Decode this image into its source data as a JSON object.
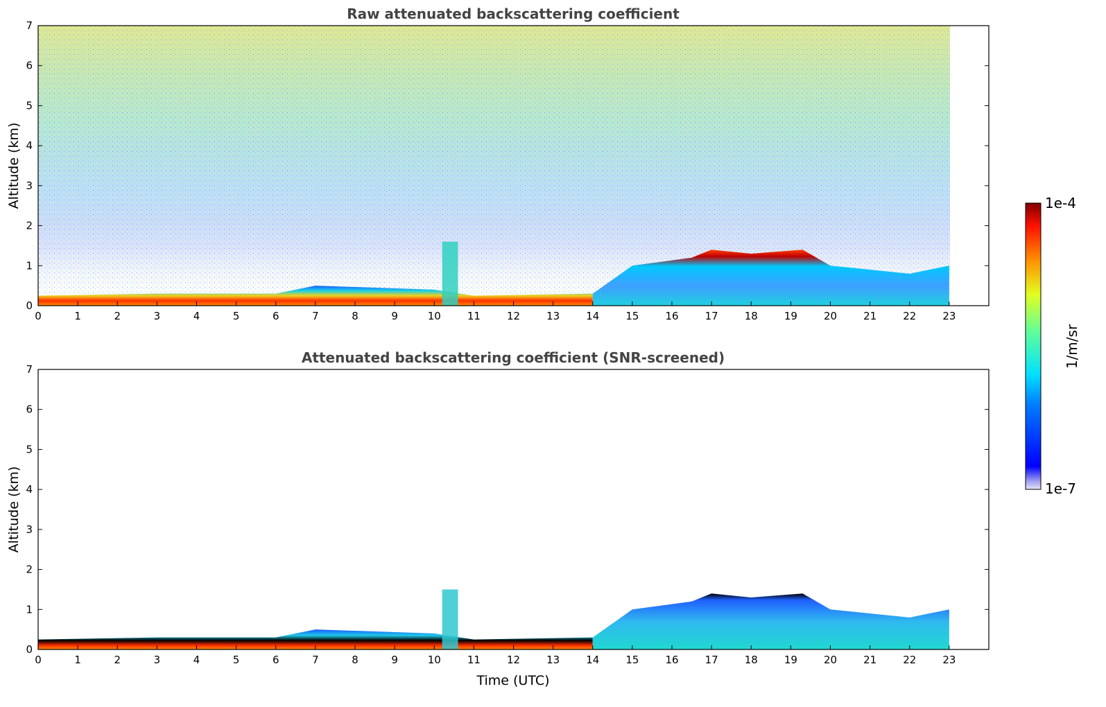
{
  "figure": {
    "type": "lidar-time-height-curtain",
    "colormap": "jet"
  },
  "chart_data": [
    {
      "type": "heatmap",
      "title": "Raw attenuated backscattering coefficient",
      "xlabel": "",
      "ylabel": "Altitude (km)",
      "xlim": [
        0,
        24
      ],
      "ylim": [
        0,
        7
      ],
      "xticks": [
        "0",
        "1",
        "2",
        "3",
        "4",
        "5",
        "6",
        "7",
        "8",
        "9",
        "10",
        "11",
        "12",
        "13",
        "14",
        "15",
        "16",
        "17",
        "18",
        "19",
        "20",
        "21",
        "22",
        "23"
      ],
      "yticks": [
        "0",
        "1",
        "2",
        "3",
        "4",
        "5",
        "6",
        "7"
      ],
      "data_end_hour": 23,
      "boundary_layer_top_km": [
        {
          "t": 0,
          "km": 0.25
        },
        {
          "t": 3,
          "km": 0.3
        },
        {
          "t": 6,
          "km": 0.3
        },
        {
          "t": 7,
          "km": 0.5
        },
        {
          "t": 10,
          "km": 0.4
        },
        {
          "t": 11,
          "km": 0.25
        },
        {
          "t": 14,
          "km": 0.3
        },
        {
          "t": 15,
          "km": 1.0
        },
        {
          "t": 16.5,
          "km": 1.2
        },
        {
          "t": 17,
          "km": 1.4
        },
        {
          "t": 18,
          "km": 1.3
        },
        {
          "t": 19.3,
          "km": 1.4
        },
        {
          "t": 20,
          "km": 1.0
        },
        {
          "t": 21,
          "km": 0.9
        },
        {
          "t": 22,
          "km": 0.8
        },
        {
          "t": 23,
          "km": 1.0
        }
      ],
      "plume_event": {
        "t_start": 10.2,
        "t_end": 10.6,
        "top_km": 1.6
      },
      "noise_region": "high-altitude solar background noise, strongest near midday"
    },
    {
      "type": "heatmap",
      "title": "Attenuated backscattering coefficient (SNR-screened)",
      "xlabel": "Time (UTC)",
      "ylabel": "Altitude (km)",
      "xlim": [
        0,
        24
      ],
      "ylim": [
        0,
        7
      ],
      "xticks": [
        "0",
        "1",
        "2",
        "3",
        "4",
        "5",
        "6",
        "7",
        "8",
        "9",
        "10",
        "11",
        "12",
        "13",
        "14",
        "15",
        "16",
        "17",
        "18",
        "19",
        "20",
        "21",
        "22",
        "23"
      ],
      "yticks": [
        "0",
        "1",
        "2",
        "3",
        "4",
        "5",
        "6",
        "7"
      ],
      "data_end_hour": 23,
      "plume_event": {
        "t_start": 10.2,
        "t_end": 10.6,
        "top_km": 1.5
      }
    }
  ],
  "colorbar": {
    "label": "1/m/sr",
    "max_label": "1e-4",
    "min_label": "1e-7",
    "scale": "log",
    "vmin": 1e-07,
    "vmax": 0.0001
  }
}
